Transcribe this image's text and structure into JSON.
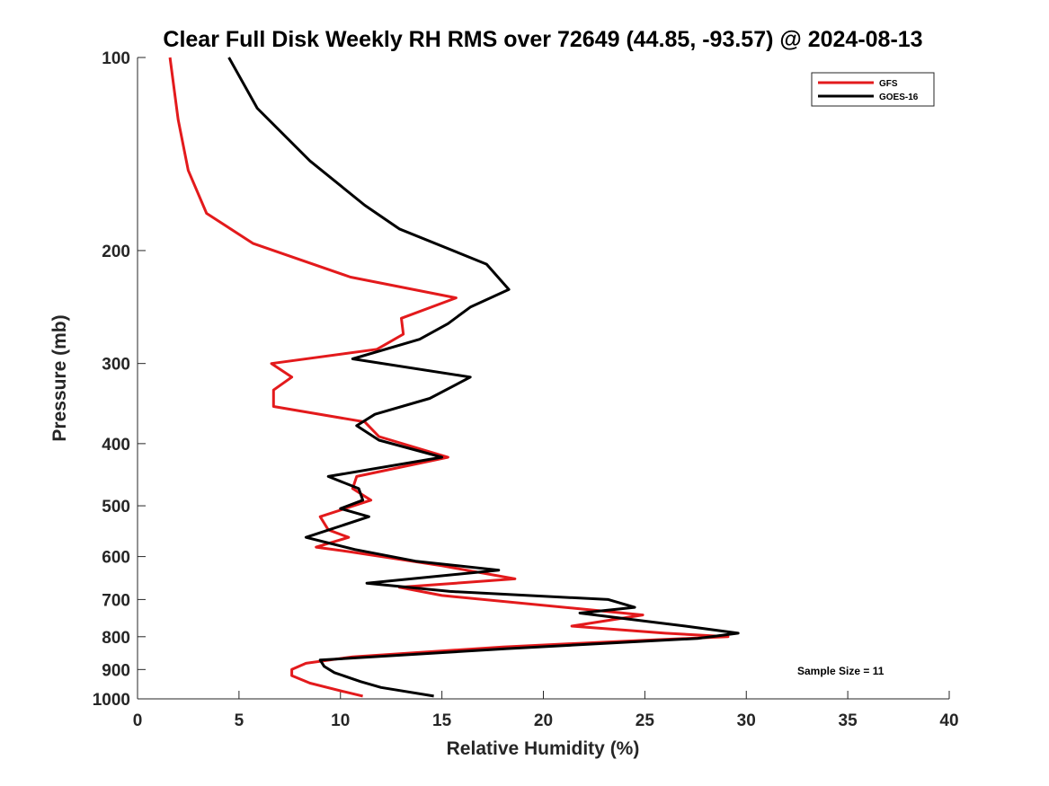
{
  "chart_data": {
    "type": "line",
    "title": "Clear Full Disk Weekly RH RMS over 72649 (44.85, -93.57) @ 2024-08-13",
    "xlabel": "Relative Humidity (%)",
    "ylabel": "Pressure (mb)",
    "xlim": [
      0,
      40
    ],
    "ylim": [
      100,
      1000
    ],
    "y_scale": "log",
    "y_reversed": true,
    "x_ticks": [
      0,
      5,
      10,
      15,
      20,
      25,
      30,
      35,
      40
    ],
    "y_ticks": [
      100,
      200,
      300,
      400,
      500,
      600,
      700,
      800,
      900,
      1000
    ],
    "grid": false,
    "legend_position": "top-right",
    "annotation": "Sample Size = 11",
    "series": [
      {
        "name": "GFS",
        "color": "#e31a1c",
        "points": [
          [
            1.6,
            100
          ],
          [
            2.0,
            125
          ],
          [
            2.5,
            150
          ],
          [
            3.4,
            175
          ],
          [
            5.7,
            195
          ],
          [
            10.5,
            220
          ],
          [
            15.7,
            237
          ],
          [
            13.0,
            255
          ],
          [
            13.1,
            270
          ],
          [
            11.8,
            285
          ],
          [
            6.6,
            300
          ],
          [
            7.6,
            315
          ],
          [
            6.7,
            330
          ],
          [
            6.7,
            350
          ],
          [
            11.2,
            370
          ],
          [
            11.9,
            390
          ],
          [
            15.3,
            420
          ],
          [
            10.8,
            450
          ],
          [
            10.6,
            470
          ],
          [
            11.5,
            490
          ],
          [
            9.0,
            520
          ],
          [
            9.4,
            545
          ],
          [
            10.4,
            560
          ],
          [
            8.8,
            580
          ],
          [
            10.5,
            590
          ],
          [
            15.0,
            620
          ],
          [
            18.6,
            650
          ],
          [
            12.9,
            670
          ],
          [
            15.0,
            690
          ],
          [
            23.0,
            730
          ],
          [
            24.9,
            740
          ],
          [
            21.4,
            770
          ],
          [
            26.0,
            790
          ],
          [
            29.1,
            800
          ],
          [
            25.0,
            810
          ],
          [
            18.0,
            830
          ],
          [
            10.6,
            860
          ],
          [
            8.3,
            880
          ],
          [
            7.6,
            900
          ],
          [
            7.6,
            920
          ],
          [
            8.5,
            945
          ],
          [
            10.2,
            975
          ],
          [
            11.1,
            990
          ]
        ]
      },
      {
        "name": "GOES-16",
        "color": "#000000",
        "points": [
          [
            4.5,
            100
          ],
          [
            5.9,
            120
          ],
          [
            8.5,
            145
          ],
          [
            11.2,
            170
          ],
          [
            12.9,
            185
          ],
          [
            17.2,
            210
          ],
          [
            18.3,
            230
          ],
          [
            16.4,
            245
          ],
          [
            15.3,
            260
          ],
          [
            13.9,
            275
          ],
          [
            10.6,
            295
          ],
          [
            16.4,
            315
          ],
          [
            14.4,
            340
          ],
          [
            11.7,
            360
          ],
          [
            10.8,
            375
          ],
          [
            11.9,
            395
          ],
          [
            15.0,
            420
          ],
          [
            9.4,
            450
          ],
          [
            10.9,
            470
          ],
          [
            11.1,
            490
          ],
          [
            10.0,
            505
          ],
          [
            11.4,
            520
          ],
          [
            8.3,
            560
          ],
          [
            10.7,
            585
          ],
          [
            13.7,
            610
          ],
          [
            17.8,
            630
          ],
          [
            11.3,
            660
          ],
          [
            15.4,
            680
          ],
          [
            23.2,
            700
          ],
          [
            24.5,
            720
          ],
          [
            21.8,
            735
          ],
          [
            27.0,
            770
          ],
          [
            29.6,
            790
          ],
          [
            27.6,
            805
          ],
          [
            18.2,
            835
          ],
          [
            9.0,
            870
          ],
          [
            9.2,
            890
          ],
          [
            9.7,
            910
          ],
          [
            11.0,
            940
          ],
          [
            12.0,
            960
          ],
          [
            14.6,
            990
          ]
        ]
      }
    ]
  }
}
